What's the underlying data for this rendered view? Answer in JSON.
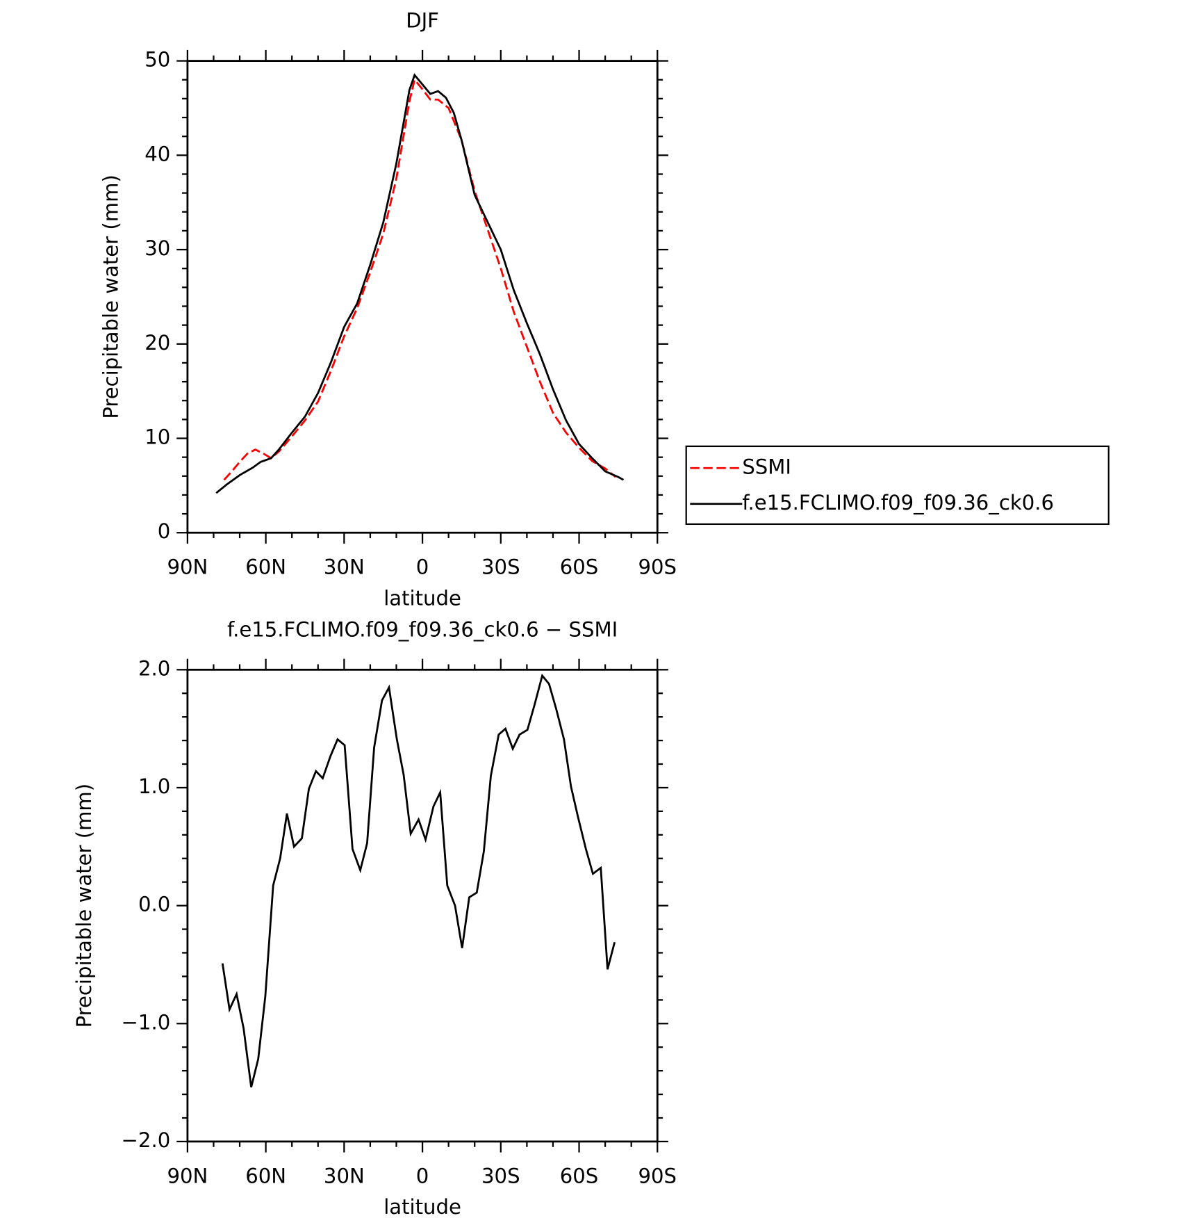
{
  "chart_data": [
    {
      "type": "line",
      "title": "DJF",
      "xlabel": "latitude",
      "ylabel": "Precipitable water (mm)",
      "xlim": [
        90,
        -90
      ],
      "xticks": [
        {
          "value": 90,
          "label": "90N"
        },
        {
          "value": 60,
          "label": "60N"
        },
        {
          "value": 30,
          "label": "30N"
        },
        0,
        {
          "value": -30,
          "label": "30S"
        },
        {
          "value": -60,
          "label": "60S"
        },
        {
          "value": -90,
          "label": "90S"
        }
      ],
      "ylim": [
        0,
        50
      ],
      "yticks": [
        0,
        10,
        20,
        30,
        40,
        50
      ],
      "legend": "right",
      "series": [
        {
          "name": "SSMI",
          "color": "#ff0000",
          "dashed": true,
          "x": [
            76,
            73,
            70,
            67,
            64,
            61,
            58,
            55,
            50,
            45,
            40,
            35,
            30,
            25,
            20,
            15,
            10,
            5,
            3,
            0,
            -3,
            -6,
            -10,
            -15,
            -20,
            -25,
            -30,
            -35,
            -40,
            -45,
            -50,
            -55,
            -60,
            -65,
            -70,
            -74
          ],
          "values": [
            5.6,
            6.5,
            7.5,
            8.4,
            8.8,
            8.4,
            7.9,
            8.6,
            10.2,
            11.9,
            13.9,
            17.2,
            20.8,
            23.8,
            27.6,
            31.7,
            37.5,
            45.7,
            48.0,
            47.0,
            45.9,
            45.9,
            45.0,
            41.6,
            36.2,
            32.1,
            28.0,
            23.4,
            19.7,
            16.0,
            12.7,
            10.6,
            9.0,
            7.6,
            6.8,
            5.9
          ]
        },
        {
          "name": "f.e15.FCLIMO.f09_f09.36_ck0.6",
          "color": "#000000",
          "dashed": false,
          "x": [
            79,
            75,
            70,
            65,
            62,
            58,
            55,
            50,
            45,
            40,
            35,
            30,
            25,
            20,
            15,
            10,
            5,
            3,
            0,
            -3,
            -6,
            -9,
            -12,
            -15,
            -20,
            -25,
            -30,
            -35,
            -40,
            -45,
            -50,
            -55,
            -60,
            -65,
            -70,
            -75,
            -77
          ],
          "values": [
            4.2,
            5.1,
            6.1,
            6.9,
            7.5,
            7.9,
            8.8,
            10.6,
            12.3,
            14.8,
            18.1,
            21.8,
            24.3,
            28.4,
            32.9,
            39.1,
            46.9,
            48.5,
            47.5,
            46.5,
            46.8,
            46.1,
            44.5,
            41.6,
            35.8,
            32.9,
            30.0,
            25.7,
            22.2,
            18.9,
            15.2,
            11.9,
            9.4,
            7.9,
            6.5,
            5.9,
            5.6
          ]
        }
      ]
    },
    {
      "type": "line",
      "title": "f.e15.FCLIMO.f09_f09.36_ck0.6 − SSMI",
      "xlabel": "latitude",
      "ylabel": "Precipitable water (mm)",
      "xlim": [
        90,
        -90
      ],
      "xticks": [
        {
          "value": 90,
          "label": "90N"
        },
        {
          "value": 60,
          "label": "60N"
        },
        {
          "value": 30,
          "label": "30N"
        },
        0,
        {
          "value": -30,
          "label": "30S"
        },
        {
          "value": -60,
          "label": "60S"
        },
        {
          "value": -90,
          "label": "90S"
        }
      ],
      "ylim": [
        -2,
        2
      ],
      "yticks": [
        {
          "value": -2,
          "label": "−2.0"
        },
        {
          "value": -1,
          "label": "−1.0"
        },
        {
          "value": 0,
          "label": "0.0"
        },
        {
          "value": 1,
          "label": "1.0"
        },
        {
          "value": 2,
          "label": "2.0"
        }
      ],
      "series": [
        {
          "color": "#000000",
          "dashed": false,
          "x": [
            76.6,
            73.9,
            71.2,
            68.5,
            65.6,
            62.9,
            60.2,
            57.2,
            54.5,
            51.9,
            49.2,
            46.2,
            43.5,
            40.8,
            38.2,
            35.2,
            32.5,
            29.8,
            26.8,
            23.8,
            21.2,
            18.5,
            15.5,
            12.8,
            9.8,
            7.2,
            4.5,
            1.5,
            -1.2,
            -4.2,
            -6.8,
            -9.5,
            -12.5,
            -15.2,
            -17.9,
            -20.8,
            -23.5,
            -26.2,
            -29.2,
            -31.8,
            -34.6,
            -37.2,
            -40.2,
            -42.9,
            -45.9,
            -48.5,
            -51.2,
            -54.2,
            -56.9,
            -59.6,
            -62.6,
            -65.3,
            -68.3,
            -70.9,
            -73.6
          ],
          "values": [
            -0.49,
            -0.88,
            -0.75,
            -1.04,
            -1.54,
            -1.3,
            -0.77,
            0.17,
            0.4,
            0.78,
            0.5,
            0.57,
            0.99,
            1.14,
            1.08,
            1.27,
            1.41,
            1.36,
            0.48,
            0.3,
            0.53,
            1.34,
            1.74,
            1.85,
            1.41,
            1.11,
            0.61,
            0.73,
            0.56,
            0.84,
            0.96,
            0.17,
            0.0,
            -0.36,
            0.07,
            0.11,
            0.46,
            1.1,
            1.45,
            1.5,
            1.33,
            1.45,
            1.49,
            1.7,
            1.95,
            1.88,
            1.67,
            1.41,
            1.01,
            0.75,
            0.48,
            0.27,
            0.32,
            -0.54,
            -0.31
          ]
        }
      ]
    }
  ]
}
